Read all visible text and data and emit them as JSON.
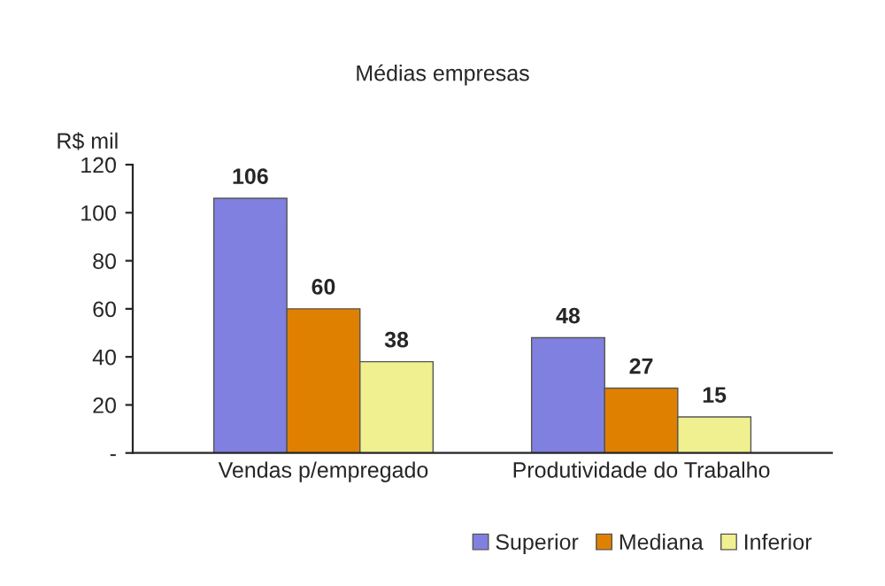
{
  "chart_data": {
    "type": "bar",
    "title": "Médias empresas",
    "ylabel": "R$ mil",
    "categories": [
      "Vendas p/empregado",
      "Produtividade do Trabalho"
    ],
    "series": [
      {
        "name": "Superior",
        "color": "#8080e0",
        "values": [
          106,
          48
        ]
      },
      {
        "name": "Mediana",
        "color": "#e08000",
        "values": [
          60,
          27
        ]
      },
      {
        "name": "Inferior",
        "color": "#f0f090",
        "values": [
          38,
          15
        ]
      }
    ],
    "ylim": [
      0,
      120
    ],
    "yticks": [
      {
        "value": 0,
        "label": "-"
      },
      20,
      40,
      60,
      80,
      100,
      120
    ],
    "data_labels": true,
    "legend": "bottom right",
    "grid": false
  }
}
